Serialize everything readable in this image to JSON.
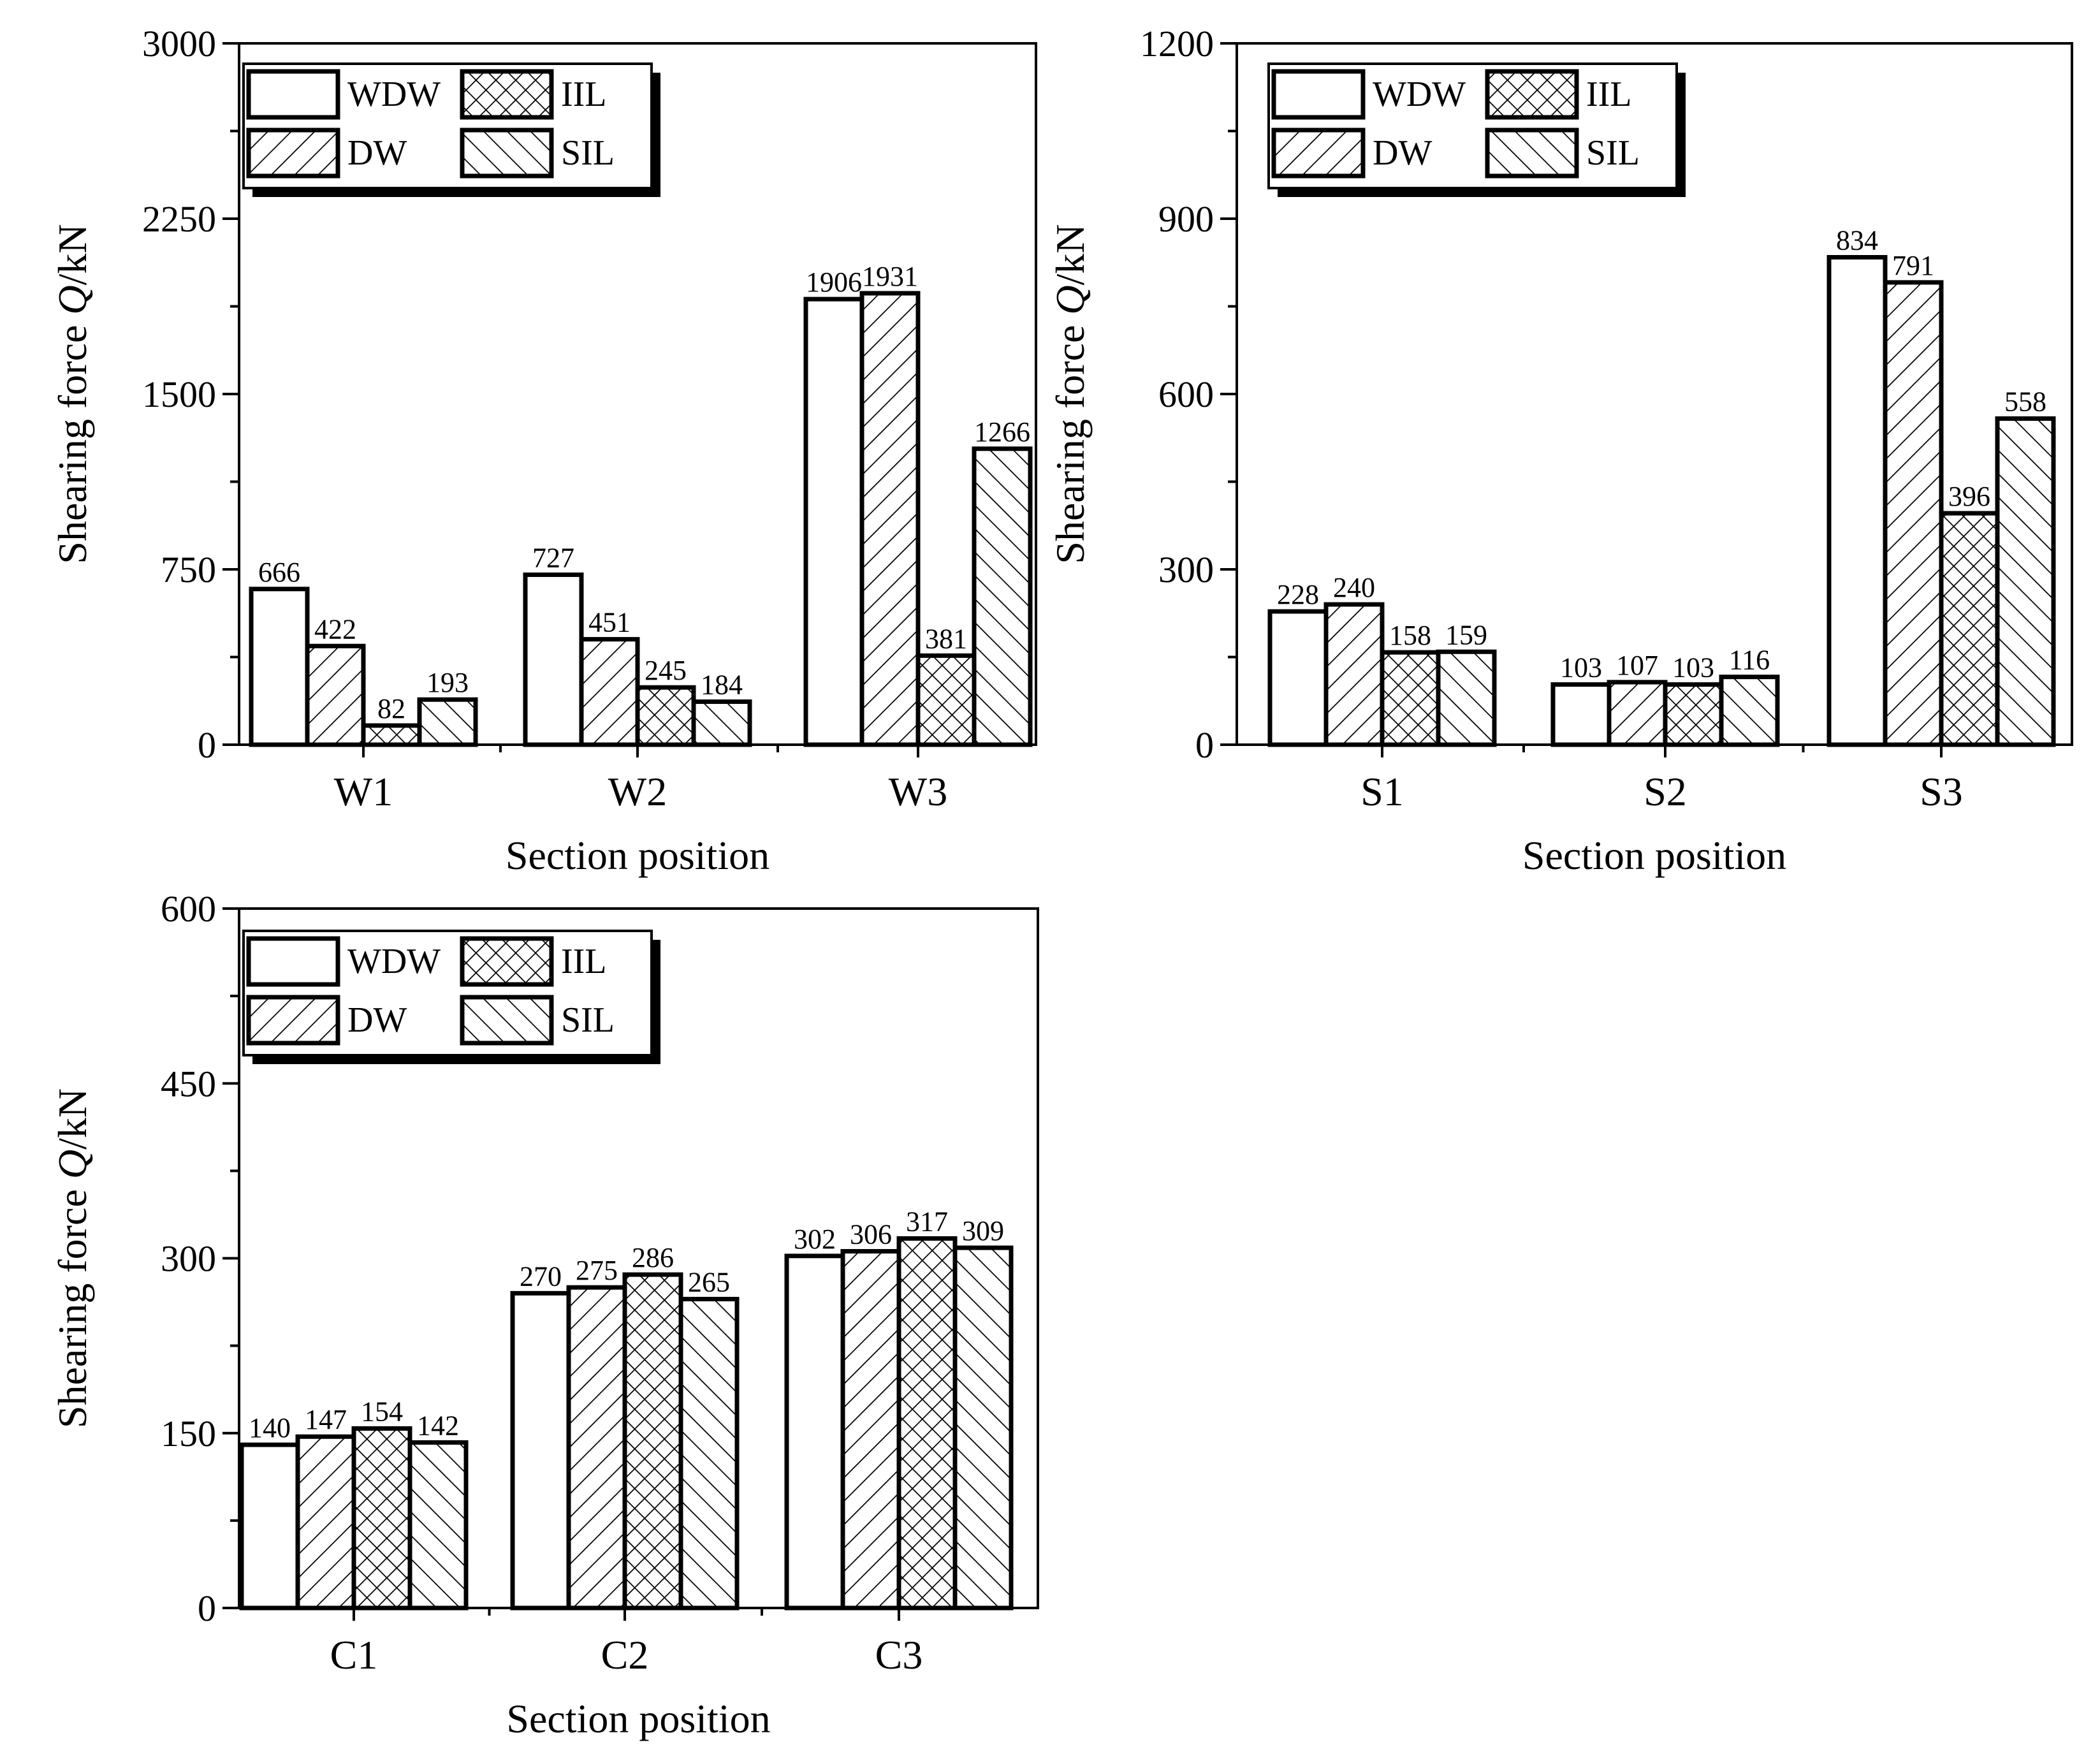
{
  "chart_data": [
    {
      "type": "bar",
      "title": "",
      "xlabel": "Section position",
      "ylabel": "Shearing force Q/kN",
      "ylim": [
        0,
        3000
      ],
      "yticks": [
        "0",
        "750",
        "1500",
        "2250",
        "3000"
      ],
      "categories": [
        "W1",
        "W2",
        "W3"
      ],
      "series": [
        {
          "name": "WDW",
          "values": [
            666,
            727,
            1906
          ]
        },
        {
          "name": "DW",
          "values": [
            422,
            451,
            1931
          ]
        },
        {
          "name": "IIL",
          "values": [
            82,
            245,
            381
          ]
        },
        {
          "name": "SIL",
          "values": [
            193,
            184,
            1266
          ]
        }
      ],
      "legend_position": "top-left"
    },
    {
      "type": "bar",
      "title": "",
      "xlabel": "Section position",
      "ylabel": "Shearing force Q/kN",
      "ylim": [
        0,
        1200
      ],
      "yticks": [
        "0",
        "300",
        "600",
        "900",
        "1200"
      ],
      "categories": [
        "S1",
        "S2",
        "S3"
      ],
      "series": [
        {
          "name": "WDW",
          "values": [
            228,
            103,
            834
          ]
        },
        {
          "name": "DW",
          "values": [
            240,
            107,
            791
          ]
        },
        {
          "name": "IIL",
          "values": [
            158,
            103,
            396
          ]
        },
        {
          "name": "SIL",
          "values": [
            159,
            116,
            558
          ]
        }
      ],
      "legend_position": "top-left"
    },
    {
      "type": "bar",
      "title": "",
      "xlabel": "Section position",
      "ylabel": "Shearing force Q/kN",
      "ylim": [
        0,
        600
      ],
      "yticks": [
        "0",
        "150",
        "300",
        "450",
        "600"
      ],
      "categories": [
        "C1",
        "C2",
        "C3"
      ],
      "series": [
        {
          "name": "WDW",
          "values": [
            140,
            270,
            302
          ]
        },
        {
          "name": "DW",
          "values": [
            147,
            275,
            306
          ]
        },
        {
          "name": "IIL",
          "values": [
            154,
            286,
            317
          ]
        },
        {
          "name": "SIL",
          "values": [
            142,
            265,
            309
          ]
        }
      ],
      "legend_position": "top-left"
    }
  ]
}
